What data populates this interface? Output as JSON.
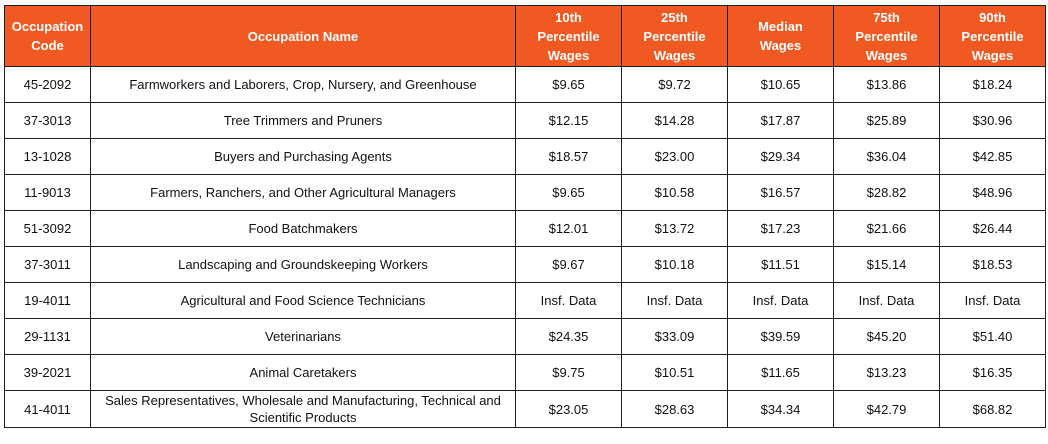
{
  "table": {
    "headers": [
      "Occupation\nCode",
      "Occupation Name",
      "10th\nPercentile\nWages",
      "25th\nPercentile\nWages",
      "Median\nWages",
      "75th\nPercentile\nWages",
      "90th\nPercentile\nWages"
    ],
    "rows": [
      [
        "45-2092",
        "Farmworkers and Laborers, Crop, Nursery, and Greenhouse",
        "$9.65",
        "$9.72",
        "$10.65",
        "$13.86",
        "$18.24"
      ],
      [
        "37-3013",
        "Tree Trimmers and Pruners",
        "$12.15",
        "$14.28",
        "$17.87",
        "$25.89",
        "$30.96"
      ],
      [
        "13-1028",
        "Buyers and Purchasing Agents",
        "$18.57",
        "$23.00",
        "$29.34",
        "$36.04",
        "$42.85"
      ],
      [
        "11-9013",
        "Farmers, Ranchers, and Other Agricultural Managers",
        "$9.65",
        "$10.58",
        "$16.57",
        "$28.82",
        "$48.96"
      ],
      [
        "51-3092",
        "Food Batchmakers",
        "$12.01",
        "$13.72",
        "$17.23",
        "$21.66",
        "$26.44"
      ],
      [
        "37-3011",
        "Landscaping and Groundskeeping Workers",
        "$9.67",
        "$10.18",
        "$11.51",
        "$15.14",
        "$18.53"
      ],
      [
        "19-4011",
        "Agricultural and Food Science Technicians",
        "Insf. Data",
        "Insf. Data",
        "Insf. Data",
        "Insf. Data",
        "Insf. Data"
      ],
      [
        "29-1131",
        "Veterinarians",
        "$24.35",
        "$33.09",
        "$39.59",
        "$45.20",
        "$51.40"
      ],
      [
        "39-2021",
        "Animal Caretakers",
        "$9.75",
        "$10.51",
        "$11.65",
        "$13.23",
        "$16.35"
      ],
      [
        "41-4011",
        "Sales Representatives, Wholesale and Manufacturing, Technical and Scientific Products",
        "$23.05",
        "$28.63",
        "$34.34",
        "$42.79",
        "$68.82"
      ]
    ]
  },
  "colors": {
    "header_background": "#f05a22",
    "header_text": "#ffffff",
    "border": "#1f1f1f"
  }
}
